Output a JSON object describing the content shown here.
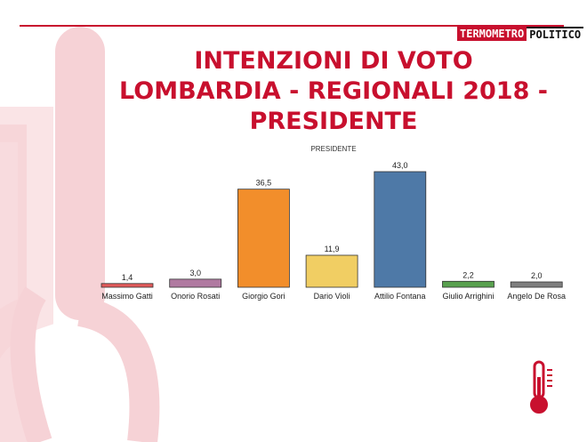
{
  "header": {
    "logo_part_a": "TERMOMETRO",
    "logo_part_b": "POLITICO",
    "title_lines": [
      "INTENZIONI DI VOTO",
      "LOMBARDIA - REGIONALI 2018 -",
      "PRESIDENTE"
    ]
  },
  "chart_data": {
    "type": "bar",
    "subtitle": "PRESIDENTE",
    "categories": [
      "Massimo Gatti",
      "Onorio Rosati",
      "Giorgio Gori",
      "Dario Violi",
      "Attilio Fontana",
      "Giulio Arrighini",
      "Angelo De Rosa"
    ],
    "values": [
      1.4,
      3.0,
      36.5,
      11.9,
      43.0,
      2.2,
      2.0
    ],
    "value_labels": [
      "1,4",
      "3,0",
      "36,5",
      "11,9",
      "43,0",
      "2,2",
      "2,0"
    ],
    "colors": [
      "#e05a5a",
      "#b07aa1",
      "#f28e2b",
      "#f1ce63",
      "#4e79a7",
      "#59a14f",
      "#7f7f7f"
    ],
    "ylim": [
      0,
      45
    ],
    "grid": false,
    "legend": "none"
  },
  "colors": {
    "accent": "#c8102e",
    "watermark": "#f7d7da"
  },
  "icons": {
    "corner": "thermometer-icon"
  }
}
